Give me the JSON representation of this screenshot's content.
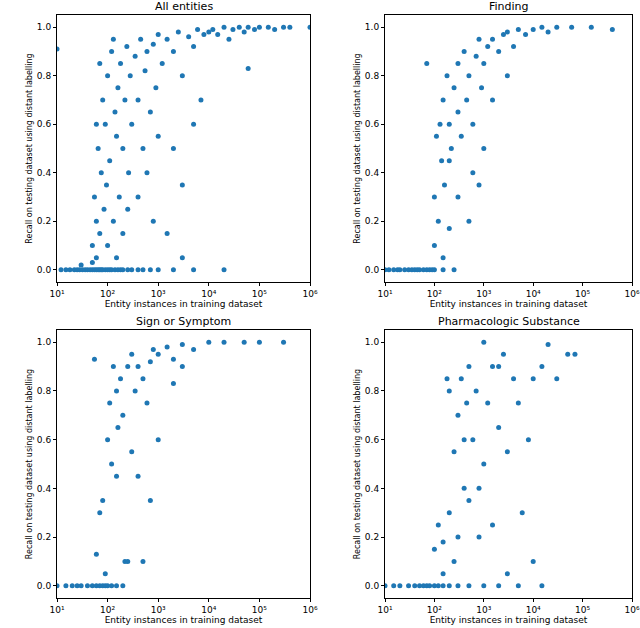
{
  "chart_data": [
    {
      "type": "scatter",
      "title": "All entities",
      "x_label": "Entity instances in training dataset",
      "y_label": "Recall on testing dataset using distant labelling",
      "color": "#1f77b4",
      "marker": "circle",
      "log": "x",
      "grid": false,
      "xlim": [
        10,
        1000000
      ],
      "xticks": [
        {
          "value": 10,
          "label": "10¹"
        },
        {
          "value": 100,
          "label": "10²"
        },
        {
          "value": 1000,
          "label": "10³"
        },
        {
          "value": 10000,
          "label": "10⁴"
        },
        {
          "value": 100000,
          "label": "10⁵"
        },
        {
          "value": 1000000,
          "label": "10⁶"
        }
      ],
      "ylim": [
        -0.05,
        1.05
      ],
      "yticks": [
        {
          "value": 0,
          "label": "0.0"
        },
        {
          "value": 0.2,
          "label": "0.2"
        },
        {
          "value": 0.4,
          "label": "0.4"
        },
        {
          "value": 0.6,
          "label": "0.6"
        },
        {
          "value": 0.8,
          "label": "0.8"
        },
        {
          "value": 1,
          "label": "1.0"
        }
      ],
      "x": [
        12,
        15,
        18,
        22,
        25,
        28,
        32,
        36,
        40,
        45,
        50,
        55,
        60,
        65,
        70,
        75,
        80,
        90,
        100,
        110,
        120,
        140,
        160,
        180,
        200,
        250,
        300,
        400,
        500,
        700,
        1000,
        2000,
        5000,
        20000,
        10,
        30,
        50,
        60,
        50,
        55,
        60,
        65,
        70,
        75,
        80,
        85,
        90,
        95,
        100,
        100,
        70,
        60,
        110,
        120,
        130,
        140,
        150,
        160,
        170,
        180,
        200,
        220,
        240,
        260,
        280,
        300,
        150,
        200,
        250,
        130,
        350,
        400,
        450,
        500,
        550,
        600,
        700,
        800,
        900,
        1000,
        400,
        600,
        800,
        1000,
        1200,
        1500,
        2000,
        2500,
        3000,
        4000,
        5000,
        6000,
        7000,
        8000,
        10000,
        2000,
        3000,
        5000,
        1500,
        3000,
        12000,
        15000,
        20000,
        25000,
        30000,
        40000,
        50000,
        60000,
        80000,
        100000,
        150000,
        200000,
        300000,
        400000,
        60000,
        1000000
      ],
      "values": [
        0,
        0,
        0,
        0,
        0,
        0,
        0,
        0,
        0,
        0,
        0,
        0,
        0,
        0,
        0,
        0,
        0,
        0,
        0,
        0,
        0,
        0,
        0,
        0,
        0,
        0,
        0,
        0,
        0,
        0,
        0,
        0,
        0,
        0,
        0.91,
        0.02,
        0.03,
        0.05,
        0.1,
        0.3,
        0.2,
        0.5,
        0.15,
        0.4,
        0.7,
        0.25,
        0.6,
        0.35,
        0.8,
        0.1,
        0.85,
        0.6,
        0.45,
        0.9,
        0.2,
        0.65,
        0.55,
        0.75,
        0.3,
        0.85,
        0.5,
        0.7,
        0.92,
        0.4,
        0.8,
        0.6,
        0.05,
        0.15,
        0.25,
        0.95,
        0.88,
        0.7,
        0.95,
        0.5,
        0.82,
        0.9,
        0.65,
        0.93,
        0.75,
        0.97,
        0.3,
        0.4,
        0.2,
        0.55,
        0.85,
        0.95,
        0.9,
        0.98,
        0.8,
        0.96,
        0.92,
        0.99,
        0.7,
        0.97,
        0.98,
        0.5,
        0.35,
        0.6,
        0.15,
        0.05,
        0.99,
        0.97,
        1.0,
        0.95,
        0.99,
        1.0,
        0.98,
        1.0,
        0.99,
        1.0,
        1.0,
        0.99,
        1.0,
        1.0,
        0.83,
        1.0
      ]
    },
    {
      "type": "scatter",
      "title": "Finding",
      "x_label": "Entity instances in training dataset",
      "y_label": "Recall on testing dataset using distant labelling",
      "color": "#1f77b4",
      "marker": "circle",
      "log": "x",
      "grid": false,
      "xlim": [
        10,
        1000000
      ],
      "xticks": [
        {
          "value": 10,
          "label": "10¹"
        },
        {
          "value": 100,
          "label": "10²"
        },
        {
          "value": 1000,
          "label": "10³"
        },
        {
          "value": 10000,
          "label": "10⁴"
        },
        {
          "value": 100000,
          "label": "10⁵"
        },
        {
          "value": 1000000,
          "label": "10⁶"
        }
      ],
      "ylim": [
        -0.05,
        1.05
      ],
      "yticks": [
        {
          "value": 0,
          "label": "0.0"
        },
        {
          "value": 0.2,
          "label": "0.2"
        },
        {
          "value": 0.4,
          "label": "0.4"
        },
        {
          "value": 0.6,
          "label": "0.6"
        },
        {
          "value": 0.8,
          "label": "0.8"
        },
        {
          "value": 1,
          "label": "1.0"
        }
      ],
      "x": [
        10,
        12,
        15,
        18,
        20,
        25,
        30,
        35,
        40,
        45,
        50,
        60,
        70,
        80,
        90,
        100,
        150,
        250,
        70,
        100,
        100,
        110,
        120,
        130,
        140,
        150,
        160,
        180,
        200,
        200,
        220,
        250,
        300,
        300,
        350,
        400,
        450,
        500,
        600,
        700,
        800,
        1000,
        1000,
        1200,
        1500,
        2000,
        2500,
        3000,
        4000,
        5000,
        7000,
        10000,
        15000,
        20000,
        30000,
        60000,
        150000,
        400000,
        500,
        300,
        200,
        800,
        1500,
        3000,
        600,
        900,
        150
      ],
      "values": [
        0,
        0,
        0,
        0,
        0,
        0,
        0,
        0,
        0,
        0,
        0,
        0,
        0,
        0,
        0,
        0,
        0,
        0,
        0.85,
        0.1,
        0.3,
        0.55,
        0.2,
        0.6,
        0.45,
        0.7,
        0.35,
        0.8,
        0.6,
        0.17,
        0.5,
        0.75,
        0.65,
        0.85,
        0.55,
        0.9,
        0.7,
        0.8,
        0.6,
        0.88,
        0.95,
        0.85,
        0.5,
        0.92,
        0.95,
        0.9,
        0.97,
        0.98,
        0.92,
        0.99,
        0.97,
        0.99,
        1.0,
        0.98,
        1.0,
        1.0,
        1.0,
        0.99,
        0.2,
        0.3,
        0.45,
        0.35,
        0.7,
        0.8,
        0.4,
        0.75,
        0.05
      ]
    },
    {
      "type": "scatter",
      "title": "Sign or Symptom",
      "x_label": "Entity instances in training dataset",
      "y_label": "Recall on testing dataset using distant labelling",
      "color": "#1f77b4",
      "marker": "circle",
      "log": "x",
      "grid": false,
      "xlim": [
        10,
        1000000
      ],
      "xticks": [
        {
          "value": 10,
          "label": "10¹"
        },
        {
          "value": 100,
          "label": "10²"
        },
        {
          "value": 1000,
          "label": "10³"
        },
        {
          "value": 10000,
          "label": "10⁴"
        },
        {
          "value": 100000,
          "label": "10⁵"
        },
        {
          "value": 1000000,
          "label": "10⁶"
        }
      ],
      "ylim": [
        -0.05,
        1.05
      ],
      "yticks": [
        {
          "value": 0,
          "label": "0.0"
        },
        {
          "value": 0.2,
          "label": "0.2"
        },
        {
          "value": 0.4,
          "label": "0.4"
        },
        {
          "value": 0.6,
          "label": "0.6"
        },
        {
          "value": 0.8,
          "label": "0.8"
        },
        {
          "value": 1,
          "label": "1.0"
        }
      ],
      "x": [
        10,
        15,
        20,
        25,
        30,
        40,
        50,
        60,
        70,
        80,
        90,
        100,
        120,
        150,
        200,
        55,
        60,
        70,
        80,
        90,
        100,
        110,
        120,
        130,
        150,
        160,
        180,
        200,
        220,
        250,
        300,
        300,
        350,
        400,
        400,
        500,
        600,
        700,
        800,
        1000,
        1000,
        1500,
        2000,
        3000,
        5000,
        10000,
        20000,
        50000,
        100000,
        300000,
        150,
        250,
        500,
        2000,
        700,
        3000
      ],
      "values": [
        0,
        0,
        0,
        0,
        0,
        0,
        0,
        0,
        0,
        0,
        0,
        0,
        0,
        0,
        0,
        0.93,
        0.13,
        0.3,
        0.35,
        0.05,
        0.6,
        0.75,
        0.5,
        0.9,
        0.8,
        0.65,
        0.85,
        0.7,
        0.1,
        0.9,
        0.55,
        0.95,
        0.8,
        0.45,
        0.9,
        0.85,
        0.75,
        0.92,
        0.97,
        0.95,
        0.6,
        0.98,
        0.93,
        0.99,
        0.97,
        1.0,
        1.0,
        1.0,
        1.0,
        1.0,
        0.45,
        0.1,
        0.1,
        0.83,
        0.35,
        0.9
      ]
    },
    {
      "type": "scatter",
      "title": "Pharmacologic Substance",
      "x_label": "Entity instances in training dataset",
      "y_label": "Recall on testing dataset using distant labelling",
      "color": "#1f77b4",
      "marker": "circle",
      "log": "x",
      "grid": false,
      "xlim": [
        10,
        1000000
      ],
      "xticks": [
        {
          "value": 10,
          "label": "10¹"
        },
        {
          "value": 100,
          "label": "10²"
        },
        {
          "value": 1000,
          "label": "10³"
        },
        {
          "value": 10000,
          "label": "10⁴"
        },
        {
          "value": 100000,
          "label": "10⁵"
        },
        {
          "value": 1000000,
          "label": "10⁶"
        }
      ],
      "ylim": [
        -0.05,
        1.05
      ],
      "yticks": [
        {
          "value": 0,
          "label": "0.0"
        },
        {
          "value": 0.2,
          "label": "0.2"
        },
        {
          "value": 0.4,
          "label": "0.4"
        },
        {
          "value": 0.6,
          "label": "0.6"
        },
        {
          "value": 0.8,
          "label": "0.8"
        },
        {
          "value": 1,
          "label": "1.0"
        }
      ],
      "x": [
        10,
        15,
        20,
        30,
        40,
        50,
        60,
        70,
        80,
        100,
        120,
        150,
        200,
        300,
        500,
        1000,
        2000,
        5000,
        15000,
        100,
        120,
        150,
        180,
        200,
        200,
        250,
        300,
        300,
        350,
        400,
        450,
        500,
        600,
        700,
        800,
        1000,
        1000,
        1200,
        1500,
        2000,
        2500,
        3000,
        4000,
        5000,
        6000,
        8000,
        10000,
        15000,
        20000,
        30000,
        50000,
        70000,
        150,
        500,
        800,
        1500,
        3000,
        10000,
        250,
        400,
        2000
      ],
      "values": [
        0,
        0,
        0,
        0,
        0,
        0,
        0,
        0,
        0,
        0,
        0,
        0,
        0,
        0,
        0,
        0,
        0,
        0,
        0,
        0.15,
        0.25,
        0.05,
        0.85,
        0.8,
        0.3,
        0.55,
        0.7,
        0.2,
        0.85,
        0.4,
        0.75,
        0.9,
        0.6,
        0.8,
        0.2,
        1.0,
        0.5,
        0.75,
        0.9,
        0.65,
        0.95,
        0.55,
        0.85,
        0.75,
        0.3,
        0.6,
        0.85,
        0.9,
        0.99,
        0.85,
        0.95,
        0.95,
        0.18,
        0.35,
        0.4,
        0.25,
        0.05,
        0.1,
        0.1,
        0.6,
        0.9
      ]
    }
  ]
}
